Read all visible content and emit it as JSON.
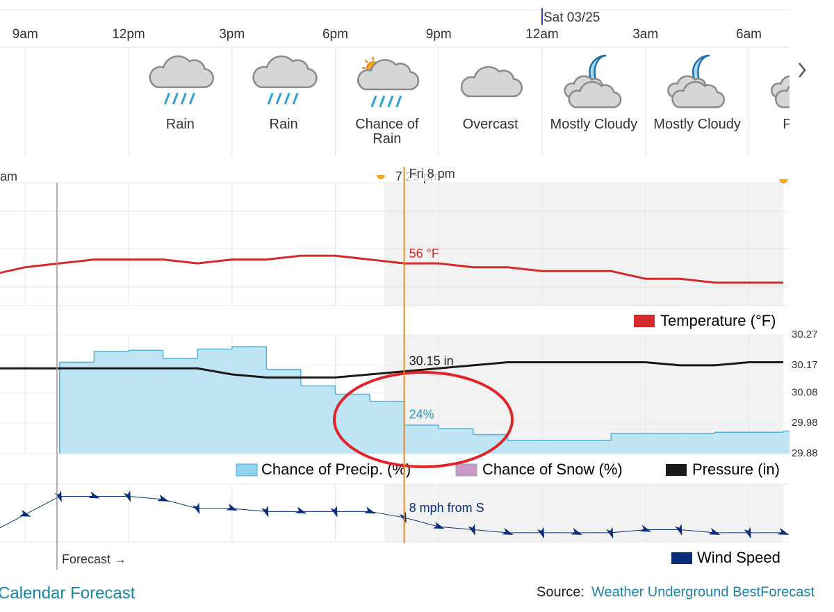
{
  "date_label": "Sat 03/25",
  "xlim": [
    -0.73,
    22.18
  ],
  "hour_ticks": [
    {
      "value": 0,
      "label": "9am"
    },
    {
      "value": 3,
      "label": "12pm"
    },
    {
      "value": 6,
      "label": "3pm"
    },
    {
      "value": 9,
      "label": "6pm"
    },
    {
      "value": 12,
      "label": "9pm"
    },
    {
      "value": 15,
      "label": "12am"
    },
    {
      "value": 18,
      "label": "3am"
    },
    {
      "value": 21,
      "label": "6am"
    }
  ],
  "conditions": [
    {
      "hour": 4.5,
      "icon": "rain",
      "label": "Rain"
    },
    {
      "hour": 7.5,
      "icon": "rain",
      "label": "Rain"
    },
    {
      "hour": 10.5,
      "icon": "sun-rain",
      "label": "Chance of Rain"
    },
    {
      "hour": 13.5,
      "icon": "cloud",
      "label": "Overcast"
    },
    {
      "hour": 16.5,
      "icon": "moon-cloud",
      "label": "Mostly Cloudy"
    },
    {
      "hour": 19.5,
      "icon": "moon-cloud",
      "label": "Mostly Cloudy"
    },
    {
      "hour": 22.5,
      "icon": "moon-cloud",
      "label": "Partly"
    }
  ],
  "sunrise_prev_label": "am",
  "sunset": {
    "hour": 10.42,
    "label": "7:25 pm"
  },
  "sunrise": {
    "hour": 22
  },
  "cursor": {
    "hour": 11,
    "label": "Fri 8 pm"
  },
  "hours": [
    -1,
    0,
    1,
    2,
    3,
    4,
    5,
    6,
    7,
    8,
    9,
    10,
    11,
    12,
    13,
    14,
    15,
    16,
    17,
    18,
    19,
    20,
    21,
    22
  ],
  "temperature": {
    "name": "Temperature (°F)",
    "color": "#d42a2a",
    "ylim": [
      45,
      77
    ],
    "values": [
      53,
      55,
      56,
      57,
      57,
      57,
      56,
      57,
      57,
      58,
      58,
      57,
      56,
      56,
      55,
      55,
      54,
      54,
      54,
      52,
      52,
      51,
      51,
      51
    ],
    "cursor_label": "56 °F"
  },
  "pressure": {
    "name": "Pressure (in)",
    "color": "#1a1a1a",
    "ylim": [
      29.88,
      30.27
    ],
    "yticks": [
      30.27,
      30.17,
      30.08,
      29.98,
      29.88
    ],
    "values": [
      30.16,
      30.16,
      30.16,
      30.16,
      30.16,
      30.16,
      30.16,
      30.14,
      30.13,
      30.13,
      30.13,
      30.14,
      30.15,
      30.16,
      30.17,
      30.18,
      30.18,
      30.18,
      30.18,
      30.18,
      30.17,
      30.17,
      30.18,
      30.18
    ],
    "cursor_label": "30.15 in"
  },
  "precip": {
    "name": "Chance of Precip. (%)",
    "color": "#8fd3ee",
    "ylim": [
      0,
      100
    ],
    "hours": [
      1,
      2,
      3,
      4,
      5,
      6,
      7,
      8,
      9,
      10,
      11,
      12,
      13,
      14,
      15,
      16,
      17,
      18,
      19,
      20,
      21,
      22
    ],
    "values": [
      77,
      86,
      87,
      80,
      88,
      90,
      71,
      57,
      50,
      44,
      24,
      21,
      16,
      11,
      11,
      11,
      17,
      17,
      17,
      18,
      18,
      19
    ],
    "cursor_label": "24%"
  },
  "snow": {
    "name": "Chance of Snow (%)",
    "color": "#c99ac6"
  },
  "wind": {
    "name": "Wind Speed",
    "color": "#0b2e7a",
    "ylim": [
      0,
      19
    ],
    "values": [
      3,
      9,
      15,
      15,
      15,
      14,
      11,
      11,
      10,
      10,
      10,
      10,
      8,
      5,
      4,
      3,
      3,
      3,
      3,
      4,
      4,
      3,
      3,
      3
    ],
    "cursor_label": "8 mph from S"
  },
  "forecast_label": "Forecast →",
  "footer": {
    "calendar_link": "Calendar Forecast",
    "source_prefix": "Source:",
    "source_link": "Weather Underground BestForecast"
  }
}
